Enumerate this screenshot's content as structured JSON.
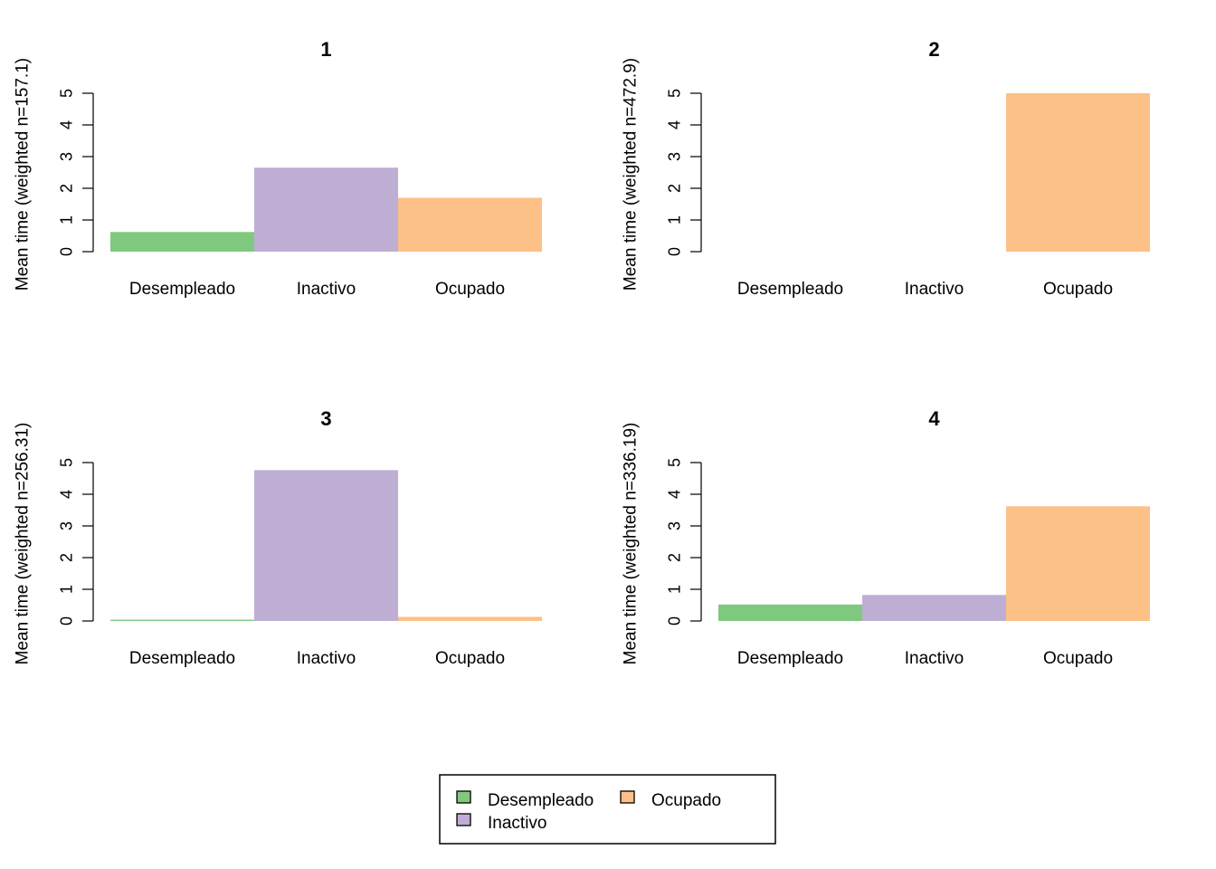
{
  "chart_data": [
    {
      "type": "bar",
      "title": "1",
      "ylabel": "Mean time (weighted n=157.1)",
      "categories": [
        "Desempleado",
        "Inactivo",
        "Ocupado"
      ],
      "values": [
        0.62,
        2.65,
        1.7
      ],
      "ylim": [
        0,
        5
      ],
      "yticks": [
        "0",
        "1",
        "2",
        "3",
        "4",
        "5"
      ]
    },
    {
      "type": "bar",
      "title": "2",
      "ylabel": "Mean time (weighted n=472.9)",
      "categories": [
        "Desempleado",
        "Inactivo",
        "Ocupado"
      ],
      "values": [
        0,
        0,
        5
      ],
      "ylim": [
        0,
        5
      ],
      "yticks": [
        "0",
        "1",
        "2",
        "3",
        "4",
        "5"
      ]
    },
    {
      "type": "bar",
      "title": "3",
      "ylabel": "Mean time (weighted n=256.31)",
      "categories": [
        "Desempleado",
        "Inactivo",
        "Ocupado"
      ],
      "values": [
        0.04,
        4.76,
        0.13
      ],
      "ylim": [
        0,
        5
      ],
      "yticks": [
        "0",
        "1",
        "2",
        "3",
        "4",
        "5"
      ]
    },
    {
      "type": "bar",
      "title": "4",
      "ylabel": "Mean time (weighted n=336.19)",
      "categories": [
        "Desempleado",
        "Inactivo",
        "Ocupado"
      ],
      "values": [
        0.52,
        0.82,
        3.62
      ],
      "ylim": [
        0,
        5
      ],
      "yticks": [
        "0",
        "1",
        "2",
        "3",
        "4",
        "5"
      ]
    }
  ],
  "legend": {
    "placement": "bottom-center",
    "items": [
      {
        "label": "Desempleado",
        "color": "#7FC97F"
      },
      {
        "label": "Inactivo",
        "color": "#BEAED4"
      },
      {
        "label": "Ocupado",
        "color": "#FDC086"
      }
    ]
  },
  "colors": {
    "Desempleado": "#7FC97F",
    "Inactivo": "#BEAED4",
    "Ocupado": "#FDC086"
  }
}
